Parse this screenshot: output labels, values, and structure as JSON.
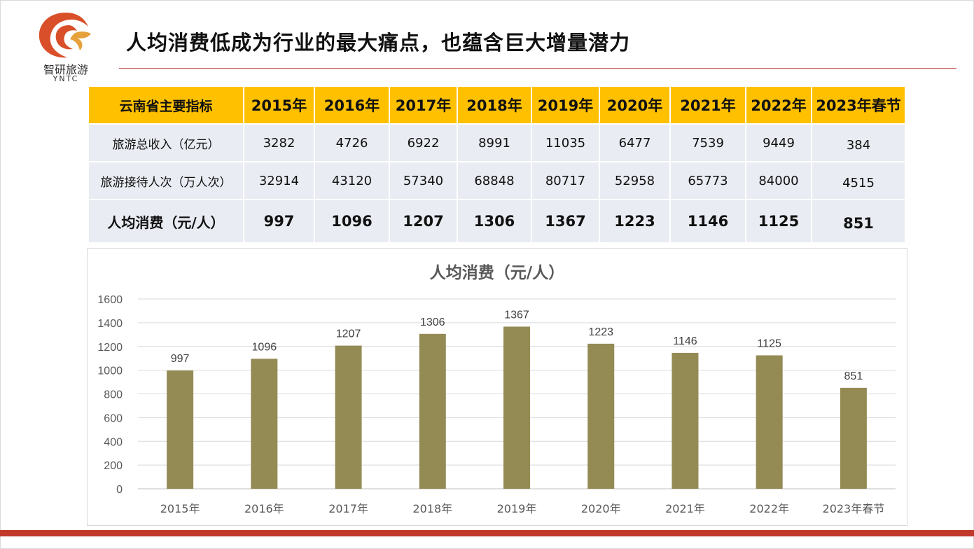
{
  "brand": {
    "name_cn": "智研旅游",
    "name_en": "YNTC",
    "colors": {
      "logo_primary": "#d94f2a",
      "logo_secondary": "#e6a13a",
      "accent_line": "#c0504d",
      "bottom_bar": "#c0392b"
    }
  },
  "slide": {
    "title": "人均消费低成为行业的最大痛点，也蕴含巨大增量潜力"
  },
  "table": {
    "header_color": "#ffc000",
    "row_color": "#e9ecf2",
    "headers": [
      "云南省主要指标",
      "2015年",
      "2016年",
      "2017年",
      "2018年",
      "2019年",
      "2020年",
      "2021年",
      "2022年",
      "2023年春节"
    ],
    "rows": [
      {
        "label": "旅游总收入（亿元）",
        "values": [
          "3282",
          "4726",
          "6922",
          "8991",
          "11035",
          "6477",
          "7539",
          "9449",
          "384"
        ]
      },
      {
        "label": "旅游接待人次（万人次）",
        "values": [
          "32914",
          "43120",
          "57340",
          "68848",
          "80717",
          "52958",
          "65773",
          "84000",
          "4515"
        ]
      },
      {
        "label": "人均消费（元/人）",
        "values": [
          "997",
          "1096",
          "1207",
          "1306",
          "1367",
          "1223",
          "1146",
          "1125",
          "851"
        ]
      }
    ]
  },
  "chart_data": {
    "type": "bar",
    "title": "人均消费（元/人）",
    "categories": [
      "2015年",
      "2016年",
      "2017年",
      "2018年",
      "2019年",
      "2020年",
      "2021年",
      "2022年",
      "2023年春节"
    ],
    "values": [
      997,
      1096,
      1207,
      1306,
      1367,
      1223,
      1146,
      1125,
      851
    ],
    "ylim": [
      0,
      1600
    ],
    "yticks": [
      0,
      200,
      400,
      600,
      800,
      1000,
      1200,
      1400,
      1600
    ],
    "grid": true,
    "data_labels": true,
    "bar_color": "#948a54",
    "legend": "none"
  }
}
